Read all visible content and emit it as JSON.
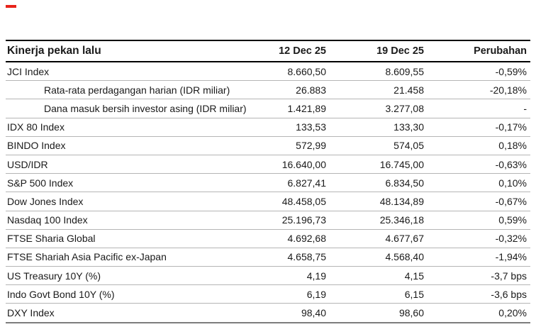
{
  "page": {
    "marker_color": "#e8231a"
  },
  "table": {
    "title": "Kinerja pekan lalu",
    "columns": [
      "12 Dec 25",
      "19 Dec 25",
      "Perubahan"
    ],
    "rows": [
      {
        "label": "JCI Index",
        "indent": false,
        "values": [
          "8.660,50",
          "8.609,55",
          "-0,59%"
        ]
      },
      {
        "label": "Rata-rata perdagangan harian (IDR miliar)",
        "indent": true,
        "values": [
          "26.883",
          "21.458",
          "-20,18%"
        ]
      },
      {
        "label": "Dana masuk bersih investor asing (IDR miliar)",
        "indent": true,
        "values": [
          "1.421,89",
          "3.277,08",
          "-"
        ]
      },
      {
        "label": "IDX 80 Index",
        "indent": false,
        "values": [
          "133,53",
          "133,30",
          "-0,17%"
        ]
      },
      {
        "label": "BINDO Index",
        "indent": false,
        "values": [
          "572,99",
          "574,05",
          "0,18%"
        ]
      },
      {
        "label": "USD/IDR",
        "indent": false,
        "values": [
          "16.640,00",
          "16.745,00",
          "-0,63%"
        ]
      },
      {
        "label": "S&P 500 Index",
        "indent": false,
        "values": [
          "6.827,41",
          "6.834,50",
          "0,10%"
        ]
      },
      {
        "label": "Dow Jones Index",
        "indent": false,
        "values": [
          "48.458,05",
          "48.134,89",
          "-0,67%"
        ]
      },
      {
        "label": "Nasdaq 100 Index",
        "indent": false,
        "values": [
          "25.196,73",
          "25.346,18",
          "0,59%"
        ]
      },
      {
        "label": "FTSE Sharia Global",
        "indent": false,
        "values": [
          "4.692,68",
          "4.677,67",
          "-0,32%"
        ]
      },
      {
        "label": "FTSE Shariah Asia Pacific ex-Japan",
        "indent": false,
        "values": [
          "4.658,75",
          "4.568,40",
          "-1,94%"
        ]
      },
      {
        "label": "US Treasury 10Y (%)",
        "indent": false,
        "values": [
          "4,19",
          "4,15",
          "-3,7 bps"
        ]
      },
      {
        "label": "Indo Govt Bond 10Y (%)",
        "indent": false,
        "values": [
          "6,19",
          "6,15",
          "-3,6 bps"
        ]
      },
      {
        "label": "DXY Index",
        "indent": false,
        "values": [
          "98,40",
          "98,60",
          "0,20%"
        ]
      }
    ]
  }
}
